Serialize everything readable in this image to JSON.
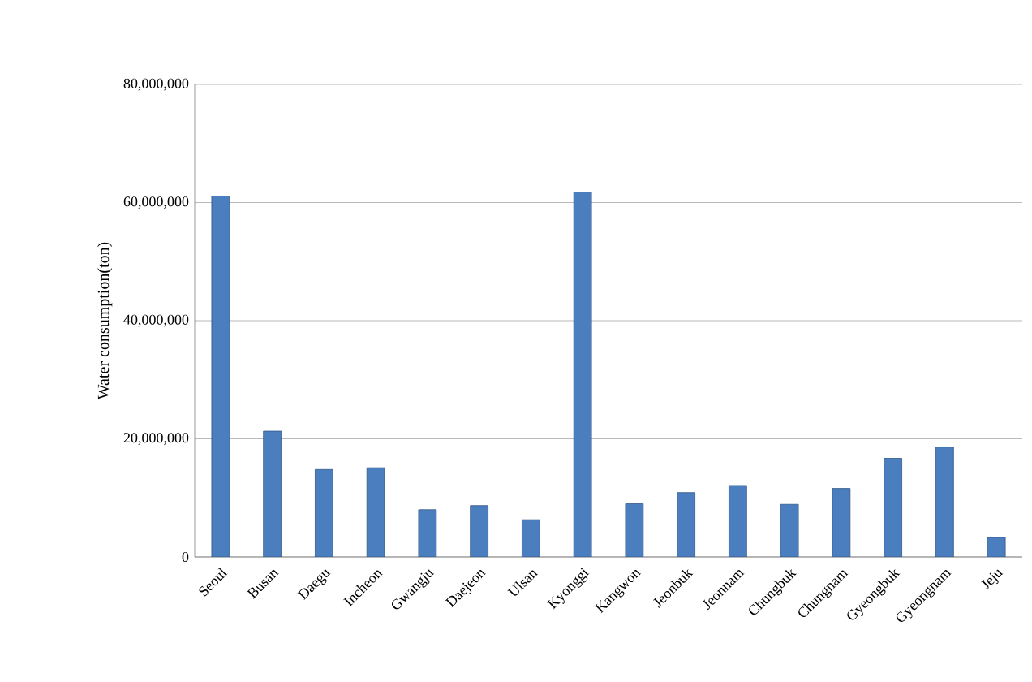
{
  "chart_data": {
    "type": "bar",
    "ylabel": "Water consumption(ton)",
    "categories": [
      "Seoul",
      "Busan",
      "Daegu",
      "Incheon",
      "Gwangju",
      "Daejeon",
      "Ulsan",
      "Kyonggi",
      "Kangwon",
      "Jeonbuk",
      "Jeonnam",
      "Chungbuk",
      "Chungnam",
      "Gyeongbuk",
      "Gyeongnam",
      "Jeju"
    ],
    "values": [
      61100000,
      21300000,
      14800000,
      15100000,
      8000000,
      8700000,
      6300000,
      61800000,
      9000000,
      10900000,
      12100000,
      8900000,
      11600000,
      16700000,
      18600000,
      3300000
    ],
    "color": "#4a7ebf",
    "ylim": [
      0,
      80000000
    ],
    "yticks": [
      0,
      {
        "value": 20000000,
        "label": "20,000,000"
      },
      {
        "value": 40000000,
        "label": "40,000,000"
      },
      {
        "value": 60000000,
        "label": "60,000,000"
      },
      {
        "value": 80000000,
        "label": "80,000,000"
      }
    ],
    "grid": "y"
  }
}
